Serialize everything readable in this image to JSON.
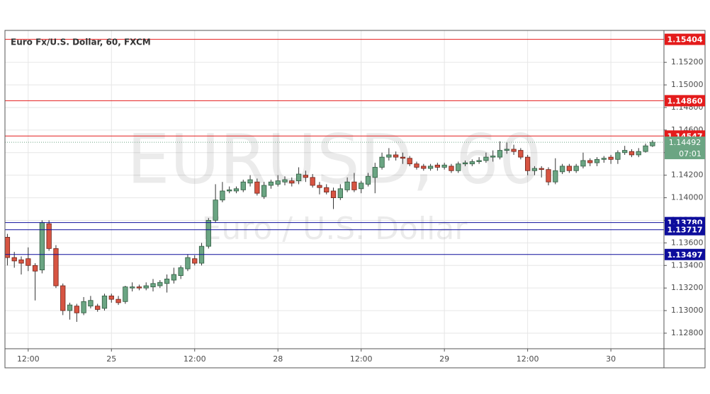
{
  "chart_data": {
    "type": "candlestick",
    "title": "Euro Fx/U.S. Dollar, 60, FXCM",
    "watermark": "EURUSD, 60",
    "watermark_subtitle": "Euro / U.S. Dollar",
    "categories": [
      null,
      null,
      null,
      "12:00",
      null,
      null,
      null,
      null,
      null,
      null,
      null,
      null,
      null,
      null,
      null,
      "25",
      null,
      null,
      null,
      null,
      null,
      null,
      null,
      null,
      null,
      null,
      null,
      "12:00",
      null,
      null,
      null,
      null,
      null,
      null,
      null,
      null,
      null,
      null,
      null,
      "28",
      null,
      null,
      null,
      null,
      null,
      null,
      null,
      null,
      null,
      null,
      null,
      "12:00",
      null,
      null,
      null,
      null,
      null,
      null,
      null,
      null,
      null,
      null,
      null,
      "29",
      null,
      null,
      null,
      null,
      null,
      null,
      null,
      null,
      null,
      null,
      null,
      "12:00",
      null,
      null,
      null,
      null,
      null,
      null,
      null,
      null,
      null,
      null,
      null,
      "30",
      null,
      null,
      null,
      null,
      null,
      null
    ],
    "open": [
      1.1365,
      1.1347,
      1.1345,
      1.1346,
      1.134,
      1.1336,
      1.1377,
      1.1355,
      1.1322,
      1.13,
      1.1304,
      1.1298,
      1.1304,
      1.1304,
      1.1302,
      1.1313,
      1.131,
      1.1308,
      1.132,
      1.1321,
      1.132,
      1.1321,
      1.1322,
      1.1324,
      1.1327,
      1.1331,
      1.1337,
      1.1346,
      1.1342,
      1.1357,
      1.138,
      1.1398,
      1.1406,
      1.1406,
      1.1407,
      1.1413,
      1.1414,
      1.1401,
      1.1411,
      1.1412,
      1.1414,
      1.1415,
      1.1415,
      1.142,
      1.1418,
      1.1411,
      1.1409,
      1.1406,
      1.14,
      1.1407,
      1.1414,
      1.1408,
      1.1412,
      1.1418,
      1.1427,
      1.1436,
      1.1438,
      1.1436,
      1.1435,
      1.143,
      1.1428,
      1.1426,
      1.1429,
      1.1427,
      1.1428,
      1.1424,
      1.143,
      1.143,
      1.1432,
      1.1433,
      1.1436,
      1.1436,
      1.1442,
      1.1443,
      1.1442,
      1.1436,
      1.1424,
      1.1426,
      1.1425,
      1.1414,
      1.1423,
      1.1428,
      1.1424,
      1.1428,
      1.1433,
      1.1431,
      1.1434,
      1.1436,
      1.1434,
      1.144,
      1.1441,
      1.1438,
      1.1441,
      1.1446
    ],
    "high": [
      1.1368,
      1.1352,
      1.1348,
      1.1356,
      1.1342,
      1.138,
      1.138,
      1.1358,
      1.1324,
      1.1307,
      1.1306,
      1.1312,
      1.1313,
      1.1306,
      1.1315,
      1.1315,
      1.1313,
      1.1322,
      1.1325,
      1.1323,
      1.1325,
      1.1328,
      1.1327,
      1.1332,
      1.1338,
      1.134,
      1.135,
      1.1349,
      1.136,
      1.1382,
      1.1412,
      1.1414,
      1.141,
      1.141,
      1.1416,
      1.142,
      1.1417,
      1.1414,
      1.1416,
      1.142,
      1.1419,
      1.1418,
      1.1427,
      1.1424,
      1.1421,
      1.1414,
      1.1412,
      1.1409,
      1.1412,
      1.1418,
      1.1422,
      1.1415,
      1.1422,
      1.1431,
      1.144,
      1.1444,
      1.1441,
      1.144,
      1.1437,
      1.1432,
      1.143,
      1.143,
      1.1431,
      1.1431,
      1.143,
      1.1432,
      1.1433,
      1.1434,
      1.1436,
      1.144,
      1.1442,
      1.145,
      1.1449,
      1.1447,
      1.1444,
      1.1438,
      1.1428,
      1.1428,
      1.1427,
      1.1435,
      1.143,
      1.143,
      1.143,
      1.144,
      1.1435,
      1.1436,
      1.1437,
      1.1438,
      1.1442,
      1.1446,
      1.1443,
      1.1444,
      1.1448,
      1.1451
    ],
    "low": [
      1.134,
      1.1338,
      1.1332,
      1.1335,
      1.1309,
      1.1333,
      1.1353,
      1.132,
      1.1296,
      1.1292,
      1.129,
      1.1296,
      1.1302,
      1.1299,
      1.13,
      1.1307,
      1.1305,
      1.1306,
      1.1317,
      1.1318,
      1.1318,
      1.1317,
      1.132,
      1.1316,
      1.1324,
      1.1328,
      1.1335,
      1.134,
      1.134,
      1.1355,
      1.1378,
      1.1396,
      1.1404,
      1.1404,
      1.1405,
      1.141,
      1.1402,
      1.1399,
      1.1408,
      1.141,
      1.1411,
      1.141,
      1.1412,
      1.1414,
      1.1409,
      1.1403,
      1.1403,
      1.139,
      1.1398,
      1.1405,
      1.1405,
      1.1404,
      1.141,
      1.1404,
      1.1425,
      1.1433,
      1.1433,
      1.143,
      1.1428,
      1.1425,
      1.1424,
      1.1424,
      1.1424,
      1.1425,
      1.1422,
      1.1422,
      1.1428,
      1.1428,
      1.143,
      1.1431,
      1.1432,
      1.1434,
      1.1439,
      1.1438,
      1.1434,
      1.142,
      1.142,
      1.1418,
      1.1411,
      1.1412,
      1.1421,
      1.1422,
      1.1422,
      1.1426,
      1.1428,
      1.1428,
      1.1431,
      1.143,
      1.143,
      1.1438,
      1.1436,
      1.1436,
      1.144,
      1.1445
    ],
    "close": [
      1.1347,
      1.1344,
      1.1342,
      1.134,
      1.1335,
      1.1378,
      1.1355,
      1.1322,
      1.13,
      1.1305,
      1.1298,
      1.1308,
      1.1309,
      1.1301,
      1.1313,
      1.131,
      1.1307,
      1.1321,
      1.1321,
      1.132,
      1.1322,
      1.1324,
      1.1325,
      1.1328,
      1.1332,
      1.1338,
      1.1347,
      1.1342,
      1.1357,
      1.138,
      1.1398,
      1.1406,
      1.1407,
      1.1408,
      1.1414,
      1.1416,
      1.1404,
      1.1411,
      1.1414,
      1.1415,
      1.1416,
      1.1413,
      1.1421,
      1.1418,
      1.1411,
      1.1409,
      1.1405,
      1.14,
      1.1408,
      1.1414,
      1.1407,
      1.1413,
      1.1419,
      1.1427,
      1.1436,
      1.1438,
      1.1436,
      1.1435,
      1.143,
      1.1427,
      1.1426,
      1.1428,
      1.1427,
      1.1429,
      1.1424,
      1.143,
      1.1431,
      1.1432,
      1.1433,
      1.1436,
      1.1437,
      1.1442,
      1.1443,
      1.1441,
      1.1436,
      1.1424,
      1.1426,
      1.1425,
      1.1414,
      1.1424,
      1.1428,
      1.1424,
      1.1428,
      1.1433,
      1.1431,
      1.1434,
      1.1435,
      1.1434,
      1.144,
      1.1442,
      1.1438,
      1.1441,
      1.1446,
      1.14492
    ],
    "up_color": "#6ba583",
    "down_color": "#d75442",
    "ylim": [
      1.12662,
      1.15483
    ],
    "yticks": [
      {
        "value": 1.128,
        "label": "1.12800"
      },
      {
        "value": 1.13,
        "label": "1.13000"
      },
      {
        "value": 1.132,
        "label": "1.13200"
      },
      {
        "value": 1.134,
        "label": "1.13400"
      },
      {
        "value": 1.136,
        "label": "1.13600"
      },
      {
        "value": 1.138,
        "label": "1.13800"
      },
      {
        "value": 1.14,
        "label": "1.14000"
      },
      {
        "value": 1.142,
        "label": "1.14200"
      },
      {
        "value": 1.144,
        "label": "1.14400"
      },
      {
        "value": 1.146,
        "label": "1.14600"
      },
      {
        "value": 1.148,
        "label": "1.14800"
      },
      {
        "value": 1.15,
        "label": "1.15000"
      },
      {
        "value": 1.152,
        "label": "1.15200"
      }
    ],
    "grid": true,
    "levels": [
      {
        "value": 1.15404,
        "label": "1.15404",
        "color": "#e41b1b"
      },
      {
        "value": 1.1486,
        "label": "1.14860",
        "color": "#e41b1b"
      },
      {
        "value": 1.14547,
        "label": "1.14547",
        "color": "#e41b1b"
      },
      {
        "value": 1.1378,
        "label": "1.13780",
        "color": "#0d0d9c"
      },
      {
        "value": 1.13717,
        "label": "1.13717",
        "color": "#0d0d9c"
      },
      {
        "value": 1.13497,
        "label": "1.13497",
        "color": "#0d0d9c"
      }
    ],
    "countdown": "07:01"
  }
}
